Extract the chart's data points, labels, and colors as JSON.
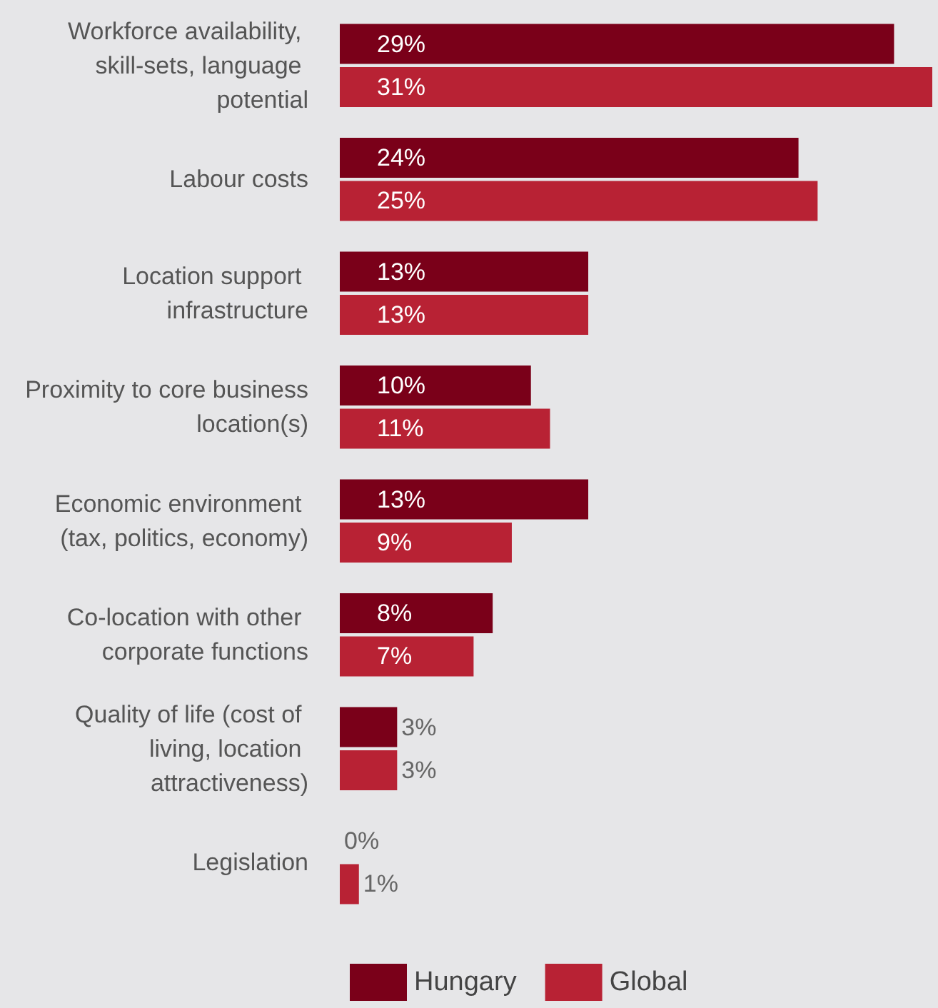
{
  "chart_data": {
    "type": "bar",
    "orientation": "horizontal",
    "categories": [
      "Workforce availability, skill-sets, language potential",
      "Labour costs",
      "Location support infrastructure",
      "Proximity to core business location(s)",
      "Economic environment (tax, politics, economy)",
      "Co-location with other corporate functions",
      "Quality of life (cost of living, location attractiveness)",
      "Legislation"
    ],
    "series": [
      {
        "name": "Hungary",
        "color": "#7a0019",
        "values": [
          29,
          24,
          13,
          10,
          13,
          8,
          3,
          0
        ],
        "value_labels": [
          "29%",
          "24%",
          "13%",
          "10%",
          "13%",
          "8%",
          "3%",
          "0%"
        ]
      },
      {
        "name": "Global",
        "color": "#b82234",
        "values": [
          31,
          25,
          13,
          11,
          9,
          7,
          3,
          1
        ],
        "value_labels": [
          "31%",
          "25%",
          "13%",
          "11%",
          "9%",
          "7%",
          "3%",
          "1%"
        ]
      }
    ],
    "legend": "bottom"
  }
}
